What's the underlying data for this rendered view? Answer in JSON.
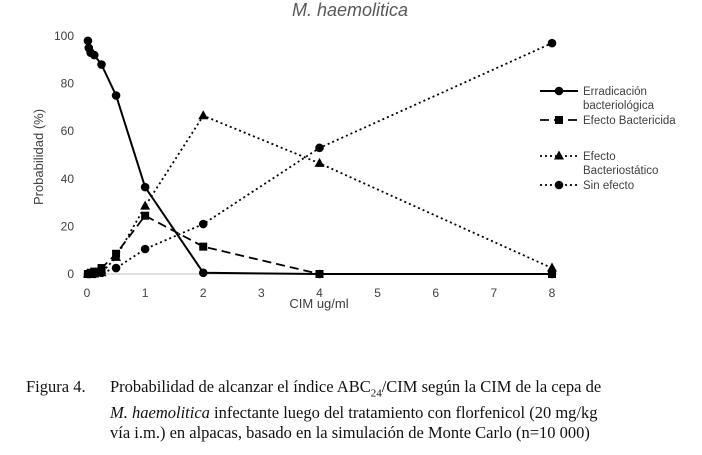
{
  "chart_data": {
    "type": "line",
    "title": "M. haemolitica",
    "xlabel": "CIM ug/ml",
    "ylabel": "Probabilidad (%)",
    "xlim": [
      0,
      8
    ],
    "ylim": [
      0,
      100
    ],
    "xticks": [
      0,
      1,
      2,
      3,
      4,
      5,
      6,
      7,
      8
    ],
    "yticks": [
      0,
      20,
      40,
      60,
      80,
      100
    ],
    "grid": false,
    "legend_position": "right",
    "series": [
      {
        "name": "Erradicación bacteriológica",
        "line": "solid",
        "marker": "circle",
        "x": [
          0.016,
          0.031,
          0.0625,
          0.125,
          0.25,
          0.5,
          1,
          2,
          4,
          8
        ],
        "y": [
          98,
          95,
          93,
          92,
          88,
          75,
          36.5,
          0.5,
          0,
          0
        ]
      },
      {
        "name": "Efecto Bactericida",
        "line": "dashed",
        "marker": "square",
        "x": [
          0.016,
          0.031,
          0.0625,
          0.125,
          0.25,
          0.5,
          1,
          2,
          4,
          8
        ],
        "y": [
          0,
          0,
          0.5,
          1,
          2.5,
          8.5,
          24.5,
          11.5,
          0,
          0
        ]
      },
      {
        "name": "Efecto Bacteriostático",
        "line": "dotted",
        "marker": "triangle",
        "x": [
          0.016,
          0.031,
          0.0625,
          0.125,
          0.25,
          0.5,
          1,
          2,
          4,
          8
        ],
        "y": [
          0,
          0,
          0,
          0,
          0.5,
          7,
          28.5,
          66.5,
          46.5,
          2.5
        ]
      },
      {
        "name": "Sin efecto",
        "line": "dotted",
        "marker": "circle",
        "x": [
          0.016,
          0.031,
          0.0625,
          0.125,
          0.25,
          0.5,
          1,
          2,
          4,
          8
        ],
        "y": [
          0,
          0,
          0,
          0,
          0.5,
          2.5,
          10.5,
          21,
          53,
          97
        ]
      }
    ]
  },
  "legend_lines": [
    [
      "Erradicación",
      "bacteriológica"
    ],
    [
      "Efecto Bactericida"
    ],
    [
      "Efecto",
      "Bacteriostático"
    ],
    [
      "Sin efecto"
    ]
  ],
  "caption": {
    "label": "Figura 4.",
    "line1_pre": "Probabilidad de alcanzar el índice ABC",
    "line1_sub": "24",
    "line1_post": "/CIM según la CIM de la cepa de",
    "line2_italic": "M. haemolitica",
    "line2_rest": " infectante luego del tratamiento con florfenicol (20 mg/kg",
    "line3": "vía i.m.) en alpacas, basado en la simulación de Monte Carlo (n=10 000)"
  }
}
